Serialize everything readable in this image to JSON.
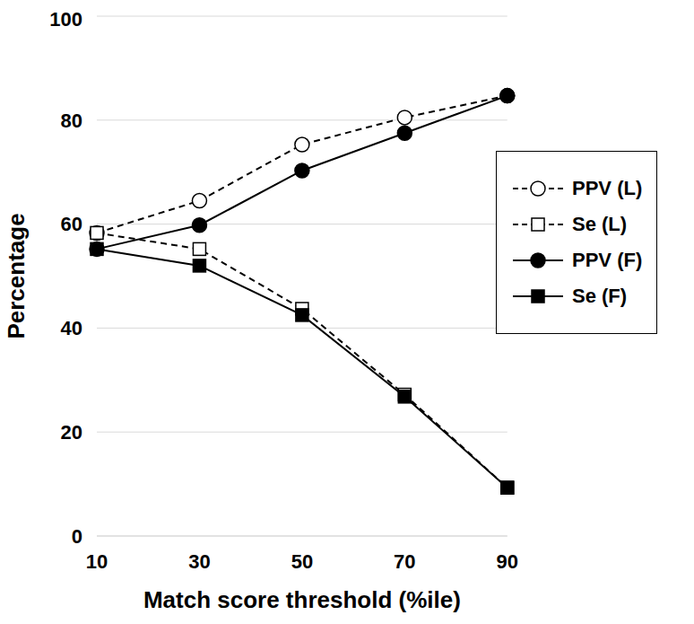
{
  "chart_data": {
    "type": "line",
    "x_label": "Match score threshold (%ile)",
    "y_label": "Percentage",
    "categories": [
      "10",
      "30",
      "50",
      "70",
      "90"
    ],
    "series": [
      {
        "name": "PPV (L)",
        "color": "#000000",
        "marker": "circle-open",
        "line_style": "dashed",
        "values": [
          58.3,
          64.5,
          75.3,
          80.5,
          84.7
        ]
      },
      {
        "name": "Se (L)",
        "color": "#000000",
        "marker": "square-open",
        "line_style": "dashed",
        "values": [
          58.3,
          55.2,
          43.7,
          27.2,
          9.3
        ]
      },
      {
        "name": "PPV (F)",
        "color": "#000000",
        "marker": "circle",
        "line_style": "solid",
        "values": [
          55.2,
          59.8,
          70.3,
          77.5,
          84.7
        ]
      },
      {
        "name": "Se (F)",
        "color": "#000000",
        "marker": "square",
        "line_style": "solid",
        "values": [
          55.2,
          52.0,
          42.5,
          26.8,
          9.3
        ]
      }
    ],
    "ylim": [
      0,
      100
    ],
    "yticks": [
      0,
      20,
      40,
      60,
      80,
      100
    ],
    "grid": true,
    "legend": "right"
  }
}
